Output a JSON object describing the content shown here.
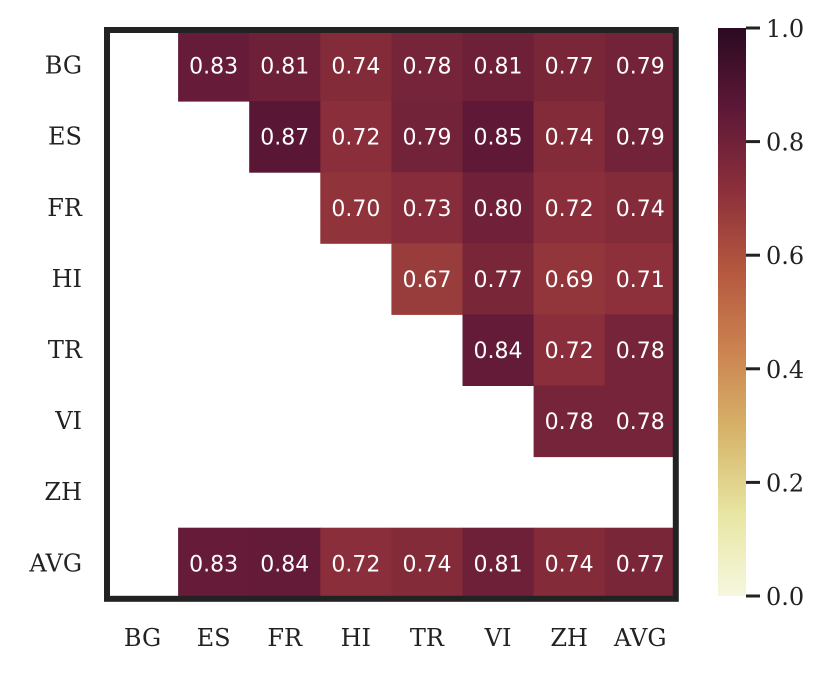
{
  "chart_data": {
    "type": "heatmap",
    "title": "",
    "xlabel": "",
    "ylabel": "",
    "x_labels": [
      "BG",
      "ES",
      "FR",
      "HI",
      "TR",
      "VI",
      "ZH",
      "AVG"
    ],
    "y_labels": [
      "BG",
      "ES",
      "FR",
      "HI",
      "TR",
      "VI",
      "ZH",
      "AVG"
    ],
    "values": [
      [
        null,
        0.83,
        0.81,
        0.74,
        0.78,
        0.81,
        0.77,
        0.79
      ],
      [
        null,
        null,
        0.87,
        0.72,
        0.79,
        0.85,
        0.74,
        0.79
      ],
      [
        null,
        null,
        null,
        0.7,
        0.73,
        0.8,
        0.72,
        0.74
      ],
      [
        null,
        null,
        null,
        null,
        0.67,
        0.77,
        0.69,
        0.71
      ],
      [
        null,
        null,
        null,
        null,
        null,
        0.84,
        0.72,
        0.78
      ],
      [
        null,
        null,
        null,
        null,
        null,
        null,
        0.78,
        0.78
      ],
      [
        null,
        null,
        null,
        null,
        null,
        null,
        null,
        null
      ],
      [
        null,
        0.83,
        0.84,
        0.72,
        0.74,
        0.81,
        0.74,
        0.77
      ]
    ],
    "value_labels": [
      [
        "",
        "0.83",
        "0.81",
        "0.74",
        "0.78",
        "0.81",
        "0.77",
        "0.79"
      ],
      [
        "",
        "",
        "0.87",
        "0.72",
        "0.79",
        "0.85",
        "0.74",
        "0.79"
      ],
      [
        "",
        "",
        "",
        "0.70",
        "0.73",
        "0.80",
        "0.72",
        "0.74"
      ],
      [
        "",
        "",
        "",
        "",
        "0.67",
        "0.77",
        "0.69",
        "0.71"
      ],
      [
        "",
        "",
        "",
        "",
        "",
        "0.84",
        "0.72",
        "0.78"
      ],
      [
        "",
        "",
        "",
        "",
        "",
        "",
        "0.78",
        "0.78"
      ],
      [
        "",
        "",
        "",
        "",
        "",
        "",
        "",
        ""
      ],
      [
        "",
        "0.83",
        "0.84",
        "0.72",
        "0.74",
        "0.81",
        "0.74",
        "0.77"
      ]
    ],
    "colorbar": {
      "range": [
        0.0,
        1.0
      ],
      "tick_labels": [
        "0.0",
        "0.2",
        "0.4",
        "0.6",
        "0.8",
        "1.0"
      ],
      "colormap": "pink-orange-red-purple",
      "stops": [
        "#f6f7df",
        "#e8e6a3",
        "#d7b56a",
        "#cc8451",
        "#b5583f",
        "#8c2f3b",
        "#5d1837",
        "#2b0a21"
      ]
    },
    "grid": false,
    "frame_color": "#222222"
  }
}
